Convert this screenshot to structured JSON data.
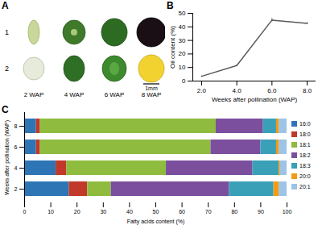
{
  "photo_panel": {
    "label": "A",
    "rows": [
      "1",
      "2"
    ],
    "columns": [
      "2 WAP",
      "4 WAP",
      "6 WAP",
      "8 WAP"
    ],
    "scale_bar": "1mm"
  },
  "chart_data": [
    {
      "type": "line",
      "annotations": [
        "B"
      ],
      "x_label": "Weeks after pollination (WAP)",
      "y_label": "Oil content (%)",
      "x": [
        2,
        4,
        6,
        8
      ],
      "values": [
        3.5,
        11.5,
        45,
        42.5
      ],
      "errors": [
        0.3,
        0.4,
        1.2,
        0.8
      ],
      "color": "#595959",
      "xlim": [
        1.5,
        8.5
      ],
      "xticks": [
        2,
        4,
        6,
        8
      ],
      "ylim": [
        0,
        50
      ],
      "yticks": [
        0,
        10,
        20,
        30,
        40,
        50
      ]
    },
    {
      "type": "bar",
      "annotations": [
        "C"
      ],
      "orientation": "horizontal",
      "stacked": true,
      "x_label": "Fatty acids content (%)",
      "y_label": "Weeks after pollination (WAP)",
      "categories": [
        "8",
        "6",
        "4",
        "2"
      ],
      "series": [
        {
          "name": "16:0",
          "color": "#2e75b6",
          "values": [
            4.5,
            4.5,
            12,
            17
          ]
        },
        {
          "name": "18:0",
          "color": "#c0392b",
          "values": [
            1.5,
            1.5,
            4,
            7
          ]
        },
        {
          "name": "18:1",
          "color": "#8fbc3f",
          "values": [
            67,
            65,
            38,
            9
          ]
        },
        {
          "name": "18:2",
          "color": "#7b4f9e",
          "values": [
            18,
            19,
            33,
            45
          ]
        },
        {
          "name": "18:3",
          "color": "#3aa0b8",
          "values": [
            5,
            6,
            10,
            17
          ]
        },
        {
          "name": "20:0",
          "color": "#f39c12",
          "values": [
            1,
            1,
            0.5,
            2
          ]
        },
        {
          "name": "20:1",
          "color": "#9dc3e6",
          "values": [
            3,
            3,
            2.5,
            3
          ]
        }
      ],
      "xlim": [
        0,
        100
      ],
      "xticks": [
        0,
        10,
        20,
        30,
        40,
        50,
        60,
        70,
        80,
        90,
        100
      ],
      "legend": "right"
    }
  ]
}
